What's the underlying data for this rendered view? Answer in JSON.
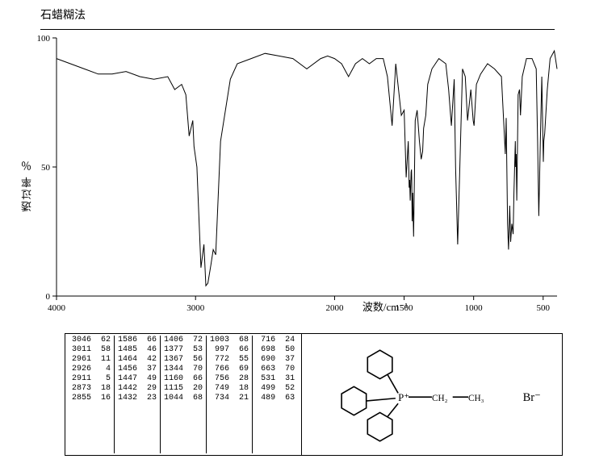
{
  "title": "石蜡糊法",
  "chart": {
    "type": "line",
    "background_color": "#ffffff",
    "line_color": "#000000",
    "line_width": 1,
    "xlim": [
      4000,
      400
    ],
    "ylim": [
      0,
      100
    ],
    "xticks": [
      4000,
      3000,
      2000,
      1500,
      1000,
      500
    ],
    "yticks": [
      0,
      50,
      100
    ],
    "xlabel": "波数/cm⁻¹",
    "ylabel": "透过率 ％",
    "label_fontsize": 13,
    "tick_fontsize": 11,
    "axis_color": "#000000",
    "spectrum": {
      "x": [
        4000,
        3900,
        3800,
        3700,
        3600,
        3500,
        3400,
        3300,
        3200,
        3150,
        3100,
        3070,
        3046,
        3020,
        3011,
        2990,
        2961,
        2940,
        2926,
        2911,
        2890,
        2873,
        2855,
        2820,
        2750,
        2700,
        2600,
        2500,
        2400,
        2300,
        2200,
        2100,
        2050,
        2000,
        1950,
        1900,
        1850,
        1800,
        1750,
        1700,
        1650,
        1620,
        1586,
        1560,
        1520,
        1500,
        1485,
        1470,
        1464,
        1460,
        1456,
        1450,
        1447,
        1445,
        1442,
        1438,
        1432,
        1420,
        1406,
        1390,
        1377,
        1370,
        1367,
        1360,
        1344,
        1330,
        1300,
        1250,
        1200,
        1180,
        1160,
        1140,
        1130,
        1115,
        1100,
        1080,
        1060,
        1044,
        1020,
        1003,
        997,
        980,
        950,
        900,
        850,
        800,
        772,
        766,
        756,
        749,
        740,
        734,
        725,
        716,
        710,
        700,
        698,
        694,
        690,
        680,
        670,
        663,
        650,
        620,
        580,
        550,
        540,
        531,
        520,
        510,
        499,
        495,
        489,
        470,
        450,
        420,
        400
      ],
      "y": [
        92,
        90,
        88,
        86,
        86,
        87,
        85,
        84,
        85,
        80,
        82,
        78,
        62,
        68,
        58,
        50,
        11,
        20,
        4,
        5,
        12,
        18,
        16,
        60,
        84,
        90,
        92,
        94,
        93,
        92,
        88,
        92,
        93,
        92,
        90,
        85,
        90,
        92,
        90,
        92,
        92,
        85,
        66,
        90,
        70,
        72,
        46,
        60,
        42,
        45,
        37,
        48,
        49,
        45,
        29,
        40,
        23,
        68,
        72,
        60,
        53,
        55,
        56,
        65,
        70,
        82,
        88,
        92,
        90,
        80,
        66,
        84,
        50,
        20,
        48,
        88,
        85,
        68,
        80,
        68,
        66,
        82,
        86,
        90,
        88,
        85,
        55,
        69,
        28,
        18,
        35,
        21,
        28,
        24,
        40,
        60,
        50,
        55,
        37,
        78,
        80,
        70,
        85,
        92,
        92,
        88,
        60,
        31,
        60,
        85,
        52,
        60,
        63,
        80,
        92,
        95,
        88
      ]
    }
  },
  "peak_table": {
    "columns_per_group": 2,
    "groups": [
      [
        [
          "3046",
          "62"
        ],
        [
          "3011",
          "58"
        ],
        [
          "2961",
          "11"
        ],
        [
          "2926",
          "4"
        ],
        [
          "2911",
          "5"
        ],
        [
          "2873",
          "18"
        ],
        [
          "2855",
          "16"
        ]
      ],
      [
        [
          "1586",
          "66"
        ],
        [
          "1485",
          "46"
        ],
        [
          "1464",
          "42"
        ],
        [
          "1456",
          "37"
        ],
        [
          "1447",
          "49"
        ],
        [
          "1442",
          "29"
        ],
        [
          "1432",
          "23"
        ]
      ],
      [
        [
          "1406",
          "72"
        ],
        [
          "1377",
          "53"
        ],
        [
          "1367",
          "56"
        ],
        [
          "1344",
          "70"
        ],
        [
          "1160",
          "66"
        ],
        [
          "1115",
          "20"
        ],
        [
          "1044",
          "68"
        ]
      ],
      [
        [
          "1003",
          "68"
        ],
        [
          "997",
          "66"
        ],
        [
          "772",
          "55"
        ],
        [
          "766",
          "69"
        ],
        [
          "756",
          "28"
        ],
        [
          "749",
          "18"
        ],
        [
          "734",
          "21"
        ]
      ],
      [
        [
          "716",
          "24"
        ],
        [
          "698",
          "50"
        ],
        [
          "690",
          "37"
        ],
        [
          "663",
          "70"
        ],
        [
          "531",
          "31"
        ],
        [
          "499",
          "52"
        ],
        [
          "489",
          "63"
        ]
      ]
    ],
    "font_family": "Courier New",
    "font_size": 10,
    "border_color": "#000000"
  },
  "molecule_label_ch2": "CH₂",
  "molecule_label_ch3": "CH₃",
  "molecule_label_br": "Br⁻",
  "molecule_label_p": "P⁺"
}
